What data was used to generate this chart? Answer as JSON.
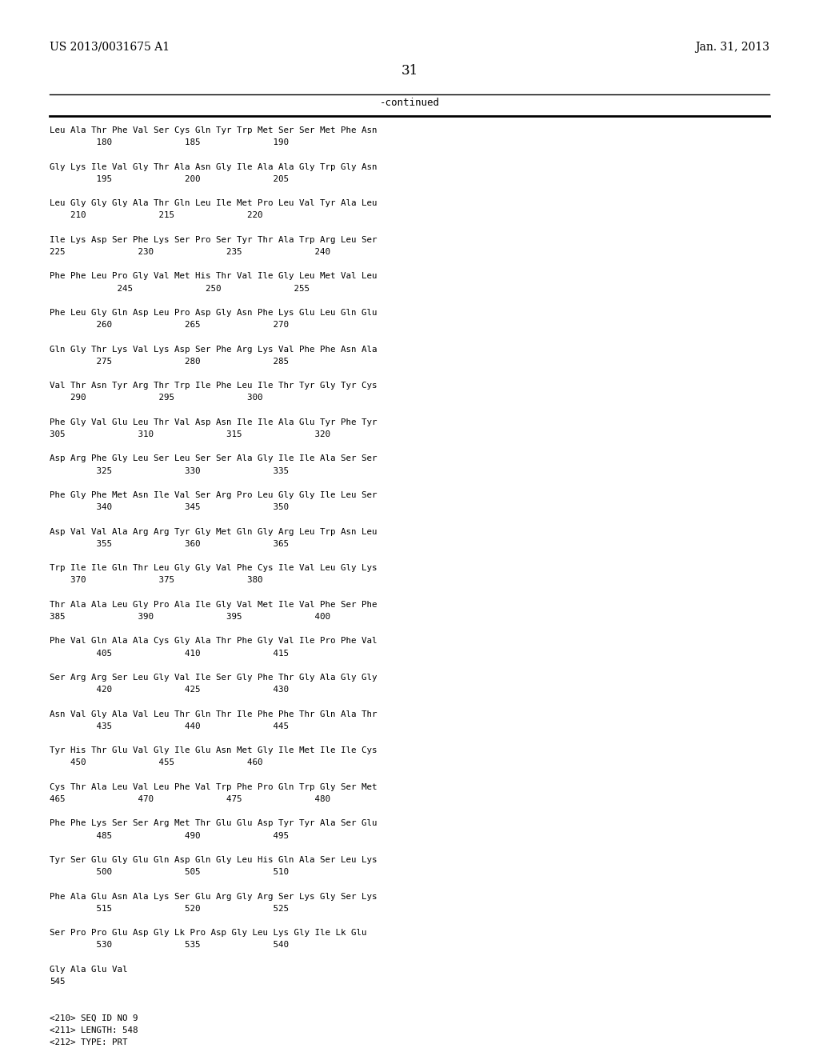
{
  "header_left": "US 2013/0031675 A1",
  "header_right": "Jan. 31, 2013",
  "page_number": "31",
  "continued_label": "-continued",
  "bg_color": "#ffffff",
  "text_color": "#000000",
  "sequence_lines": [
    "Leu Ala Thr Phe Val Ser Cys Gln Tyr Trp Met Ser Ser Met Phe Asn",
    "         180              185              190",
    "",
    "Gly Lys Ile Val Gly Thr Ala Asn Gly Ile Ala Ala Gly Trp Gly Asn",
    "         195              200              205",
    "",
    "Leu Gly Gly Gly Ala Thr Gln Leu Ile Met Pro Leu Val Tyr Ala Leu",
    "    210              215              220",
    "",
    "Ile Lys Asp Ser Phe Lys Ser Pro Ser Tyr Thr Ala Trp Arg Leu Ser",
    "225              230              235              240",
    "",
    "Phe Phe Leu Pro Gly Val Met His Thr Val Ile Gly Leu Met Val Leu",
    "             245              250              255",
    "",
    "Phe Leu Gly Gln Asp Leu Pro Asp Gly Asn Phe Lys Glu Leu Gln Glu",
    "         260              265              270",
    "",
    "Gln Gly Thr Lys Val Lys Asp Ser Phe Arg Lys Val Phe Phe Asn Ala",
    "         275              280              285",
    "",
    "Val Thr Asn Tyr Arg Thr Trp Ile Phe Leu Ile Thr Tyr Gly Tyr Cys",
    "    290              295              300",
    "",
    "Phe Gly Val Glu Leu Thr Val Asp Asn Ile Ile Ala Glu Tyr Phe Tyr",
    "305              310              315              320",
    "",
    "Asp Arg Phe Gly Leu Ser Leu Ser Ser Ala Gly Ile Ile Ala Ser Ser",
    "         325              330              335",
    "",
    "Phe Gly Phe Met Asn Ile Val Ser Arg Pro Leu Gly Gly Ile Leu Ser",
    "         340              345              350",
    "",
    "Asp Val Val Ala Arg Arg Tyr Gly Met Gln Gly Arg Leu Trp Asn Leu",
    "         355              360              365",
    "",
    "Trp Ile Ile Gln Thr Leu Gly Gly Val Phe Cys Ile Val Leu Gly Lys",
    "    370              375              380",
    "",
    "Thr Ala Ala Leu Gly Pro Ala Ile Gly Val Met Ile Val Phe Ser Phe",
    "385              390              395              400",
    "",
    "Phe Val Gln Ala Ala Cys Gly Ala Thr Phe Gly Val Ile Pro Phe Val",
    "         405              410              415",
    "",
    "Ser Arg Arg Ser Leu Gly Val Ile Ser Gly Phe Thr Gly Ala Gly Gly",
    "         420              425              430",
    "",
    "Asn Val Gly Ala Val Leu Thr Gln Thr Ile Phe Phe Thr Gln Ala Thr",
    "         435              440              445",
    "",
    "Tyr His Thr Glu Val Gly Ile Glu Asn Met Gly Ile Met Ile Ile Cys",
    "    450              455              460",
    "",
    "Cys Thr Ala Leu Val Leu Phe Val Trp Phe Pro Gln Trp Gly Ser Met",
    "465              470              475              480",
    "",
    "Phe Phe Lys Ser Ser Arg Met Thr Glu Glu Asp Tyr Tyr Ala Ser Glu",
    "         485              490              495",
    "",
    "Tyr Ser Glu Gly Glu Gln Asp Gln Gly Leu His Gln Ala Ser Leu Lys",
    "         500              505              510",
    "",
    "Phe Ala Glu Asn Ala Lys Ser Glu Arg Gly Arg Ser Lys Gly Ser Lys",
    "         515              520              525",
    "",
    "Ser Pro Pro Glu Asp Gly Lk Pro Asp Gly Leu Lys Gly Ile Lk Glu",
    "         530              535              540",
    "",
    "Gly Ala Glu Val",
    "545",
    "",
    "",
    "<210> SEQ ID NO 9",
    "<211> LENGTH: 548",
    "<212> TYPE: PRT"
  ]
}
